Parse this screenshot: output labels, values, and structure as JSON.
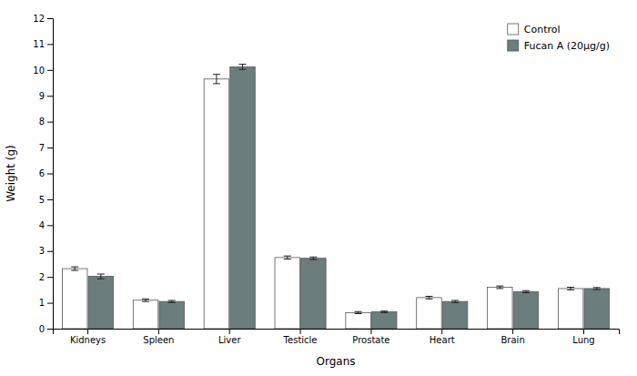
{
  "chart_data": {
    "type": "bar",
    "xlabel": "Organs",
    "ylabel": "Weight (g)",
    "categories": [
      "Kidneys",
      "Spleen",
      "Liver",
      "Testicle",
      "Prostate",
      "Heart",
      "Brain",
      "Lung"
    ],
    "series": [
      {
        "name": "Control",
        "color": "#FFFFFF",
        "values": [
          2.32,
          1.1,
          9.65,
          2.75,
          0.62,
          1.2,
          1.6,
          1.55
        ],
        "errors": [
          0.07,
          0.05,
          0.18,
          0.06,
          0.04,
          0.05,
          0.05,
          0.05
        ]
      },
      {
        "name": "Fucan A (20μg/g)",
        "color": "#6b7d7d",
        "values": [
          2.02,
          1.05,
          10.12,
          2.72,
          0.65,
          1.05,
          1.43,
          1.55
        ],
        "errors": [
          0.09,
          0.04,
          0.1,
          0.05,
          0.03,
          0.04,
          0.04,
          0.04
        ]
      }
    ],
    "ylim": [
      0,
      12
    ],
    "yticks": [
      0,
      1,
      2,
      3,
      4,
      5,
      6,
      7,
      8,
      9,
      10,
      11,
      12
    ],
    "grid": false,
    "legend": "upper right"
  }
}
